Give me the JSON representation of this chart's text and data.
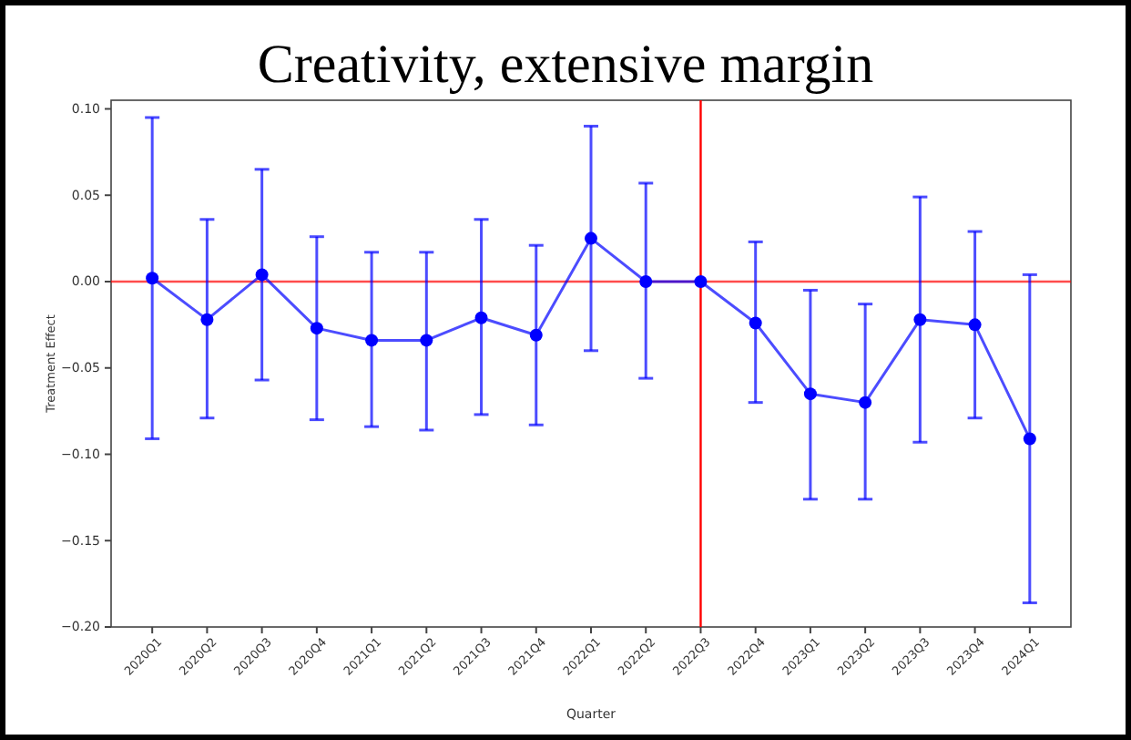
{
  "chart_data": {
    "type": "line",
    "title": "Creativity, extensive margin",
    "xlabel": "Quarter",
    "ylabel": "Treatment Effect",
    "categories": [
      "2020Q1",
      "2020Q2",
      "2020Q3",
      "2020Q4",
      "2021Q1",
      "2021Q2",
      "2021Q3",
      "2021Q4",
      "2022Q1",
      "2022Q2",
      "2022Q3",
      "2022Q4",
      "2023Q1",
      "2023Q2",
      "2023Q3",
      "2023Q4",
      "2024Q1"
    ],
    "series": [
      {
        "color": "#0000ff",
        "values": [
          0.002,
          -0.022,
          0.004,
          -0.027,
          -0.034,
          -0.034,
          -0.021,
          -0.031,
          0.025,
          0,
          0,
          -0.024,
          -0.065,
          -0.07,
          -0.022,
          -0.025,
          -0.091
        ],
        "errors": [
          [
            -0.091,
            0.095
          ],
          [
            -0.079,
            0.036
          ],
          [
            -0.057,
            0.065
          ],
          [
            -0.08,
            0.026
          ],
          [
            -0.084,
            0.017
          ],
          [
            -0.086,
            0.017
          ],
          [
            -0.077,
            0.036
          ],
          [
            -0.083,
            0.021
          ],
          [
            -0.04,
            0.09
          ],
          [
            -0.056,
            0.057
          ],
          null,
          [
            -0.07,
            0.023
          ],
          [
            -0.126,
            -0.005
          ],
          [
            -0.126,
            -0.013
          ],
          [
            -0.093,
            0.049
          ],
          [
            -0.079,
            0.029
          ],
          [
            -0.186,
            0.004
          ]
        ]
      }
    ],
    "marker": "circle",
    "ylim": [
      -0.2,
      0.105
    ],
    "yticks": [
      {
        "value": -0.2,
        "label": "−0.20"
      },
      {
        "value": -0.15,
        "label": "−0.15"
      },
      {
        "value": -0.1,
        "label": "−0.10"
      },
      {
        "value": -0.05,
        "label": "−0.05"
      },
      {
        "value": 0,
        "label": "0.00"
      },
      {
        "value": 0.05,
        "label": "0.05"
      },
      {
        "value": 0.1,
        "label": "0.10"
      }
    ],
    "ref_lines": [
      {
        "axis": "y",
        "value": 0,
        "color": "#ff0000"
      },
      {
        "axis": "x",
        "value": "2022Q3",
        "color": "#ff0000"
      }
    ]
  }
}
